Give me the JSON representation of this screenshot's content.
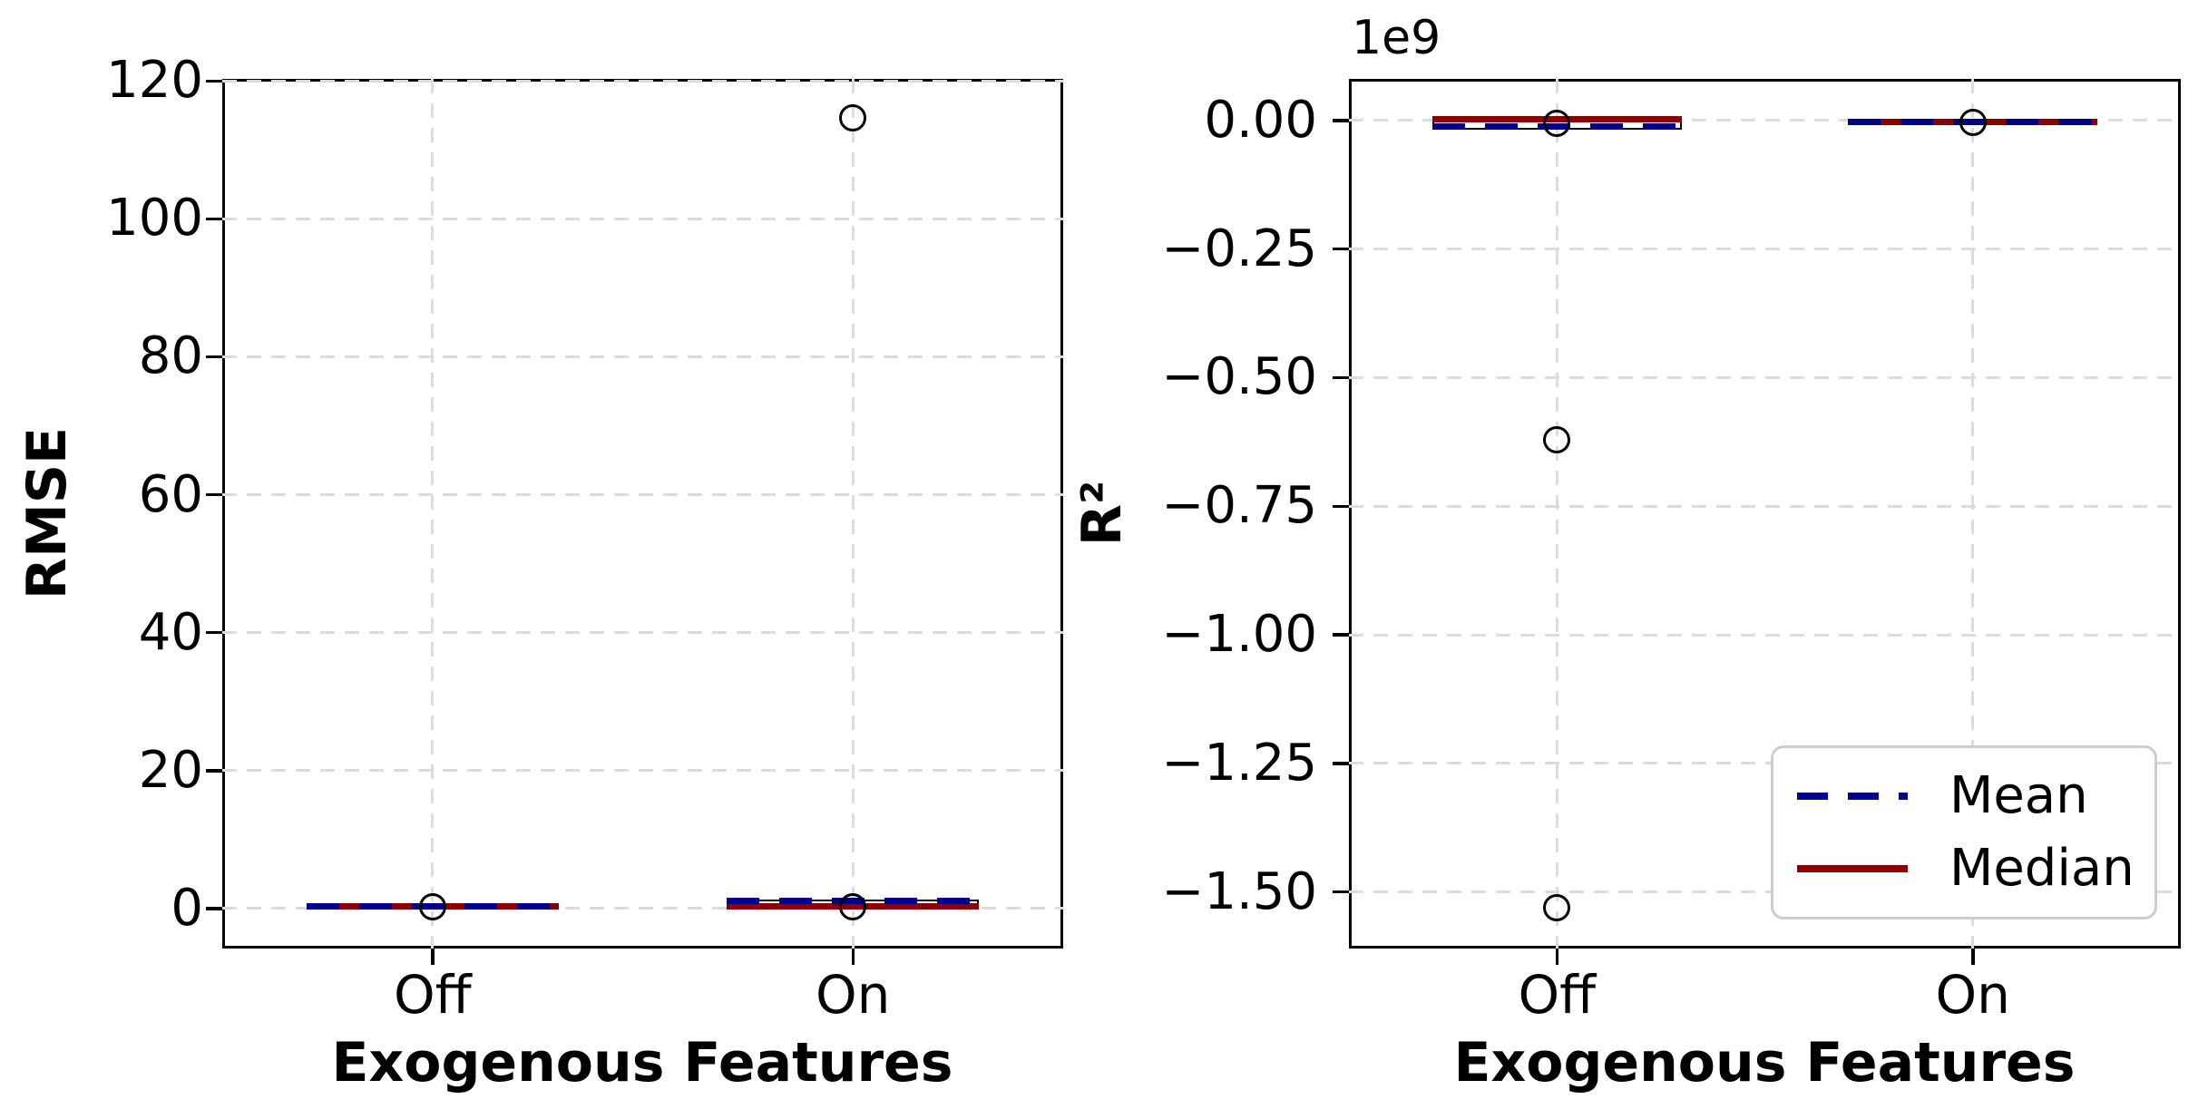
{
  "figure": {
    "background": "#ffffff",
    "title": ""
  },
  "colors": {
    "mean_line": "#00008b",
    "median_line": "#8b0000",
    "box_edge": "#000000",
    "outlier_edge": "#000000",
    "grid": "#dcdcdc",
    "spine": "#000000",
    "legend_border": "#cdcdcd"
  },
  "legend": {
    "position": "lower right",
    "items": [
      {
        "label": "Mean",
        "color": "#00008b",
        "style": "dashed"
      },
      {
        "label": "Median",
        "color": "#8b0000",
        "style": "solid"
      }
    ]
  },
  "chart_data": [
    {
      "type": "box",
      "panel": "left",
      "title": "",
      "ylabel": "RMSE",
      "xlabel": "Exogenous Features",
      "categories": [
        "Off",
        "On"
      ],
      "ylim": [
        -5.8,
        120.3
      ],
      "yticks": [
        0,
        20,
        40,
        60,
        80,
        100,
        120
      ],
      "ytick_labels": [
        "0",
        "20",
        "40",
        "60",
        "80",
        "100",
        "120"
      ],
      "grid": true,
      "boxes": [
        {
          "category": "Off",
          "q1": 0.0,
          "q3": 0.6,
          "median": 0.3,
          "mean": 0.3,
          "outliers": [
            0.25
          ]
        },
        {
          "category": "On",
          "q1": 0.05,
          "q3": 1.3,
          "median": 0.35,
          "mean": 1.1,
          "outliers": [
            0.3,
            114.7
          ]
        }
      ]
    },
    {
      "type": "box",
      "panel": "right",
      "title": "",
      "ylabel": "R²",
      "xlabel": "Exogenous Features",
      "offset_text": "1e9",
      "value_units": "1e9",
      "categories": [
        "Off",
        "On"
      ],
      "ylim": [
        -1.61,
        0.081
      ],
      "yticks": [
        0.0,
        -0.25,
        -0.5,
        -0.75,
        -1.0,
        -1.25,
        -1.5
      ],
      "ytick_labels": [
        "0.00",
        "−0.25",
        "−0.50",
        "−0.75",
        "−1.00",
        "−1.25",
        "−1.50"
      ],
      "grid": true,
      "boxes": [
        {
          "category": "Off",
          "q1": -0.018,
          "q3": 0.004,
          "median": 0.002,
          "mean": -0.012,
          "outliers": [
            -0.005,
            -0.62,
            -1.53
          ]
        },
        {
          "category": "On",
          "q1": -0.005,
          "q3": 0.001,
          "median": -0.002,
          "mean": -0.002,
          "outliers": [
            -0.003
          ]
        }
      ]
    }
  ]
}
